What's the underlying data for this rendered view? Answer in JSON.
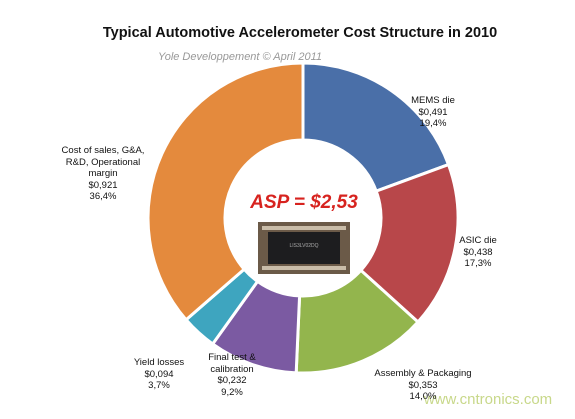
{
  "chart_data": {
    "type": "pie",
    "donut": true,
    "title": "Typical Automotive Accelerometer Cost Structure in 2010",
    "subtitle": "Yole Developpement © April 2011",
    "annotation": "ASP = $2,53",
    "watermark": "www.cntronics.com",
    "categories": [
      "MEMS die",
      "ASIC die",
      "Assembly & Packaging",
      "Final test & calibration",
      "Yield losses",
      "Cost of sales, G&A, R&D, Operational margin"
    ],
    "values": [
      19.4,
      17.3,
      14.0,
      9.2,
      3.7,
      36.4
    ],
    "value_labels": [
      "19,4%",
      "17,3%",
      "14,0%",
      "9,2%",
      "3,7%",
      "36,4%"
    ],
    "costs": [
      0.491,
      0.438,
      0.353,
      0.232,
      0.094,
      0.921
    ],
    "cost_labels": [
      "$0,491",
      "$0,438",
      "$0,353",
      "$0,232",
      "$0,094",
      "$0,921"
    ],
    "colors": [
      "#4a6fa8",
      "#b8474a",
      "#93b54d",
      "#7b5aa2",
      "#3ea5bf",
      "#e48a3d"
    ]
  }
}
